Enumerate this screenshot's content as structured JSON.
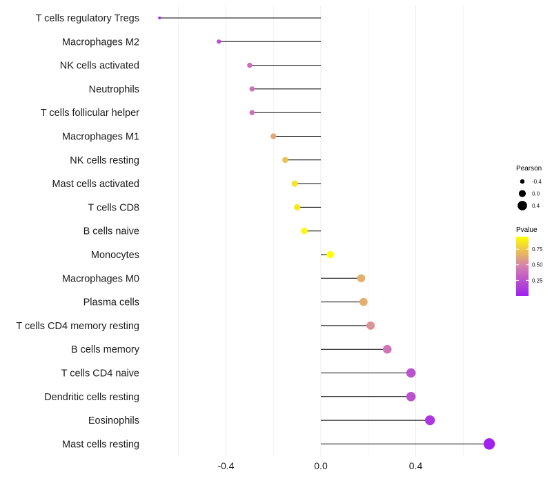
{
  "chart_data": {
    "type": "lollipop",
    "title": "",
    "xlabel": "",
    "ylabel": "",
    "xlim": [
      -0.8,
      0.75
    ],
    "xticks": [
      -0.4,
      0.0,
      0.4
    ],
    "xtick_labels": [
      "-0.4",
      "0.0",
      "0.4"
    ],
    "grid": true,
    "categories": [
      "T cells regulatory  Tregs",
      "Macrophages M2",
      "NK cells activated",
      "Neutrophils",
      "T cells follicular helper",
      "Macrophages M1",
      "NK cells resting",
      "Mast cells activated",
      "T cells CD8",
      "B cells naive",
      "Monocytes",
      "Macrophages M0",
      "Plasma cells",
      "T cells CD4 memory resting",
      "B cells memory",
      "T cells CD4 naive",
      "Dendritic cells resting",
      "Eosinophils",
      "Mast cells resting"
    ],
    "pearson": [
      -0.68,
      -0.43,
      -0.3,
      -0.29,
      -0.29,
      -0.2,
      -0.15,
      -0.11,
      -0.1,
      -0.07,
      0.04,
      0.17,
      0.18,
      0.21,
      0.28,
      0.38,
      0.38,
      0.46,
      0.71
    ],
    "pvalue": [
      0.02,
      0.22,
      0.38,
      0.4,
      0.4,
      0.62,
      0.72,
      0.85,
      0.87,
      0.92,
      0.99,
      0.66,
      0.65,
      0.55,
      0.42,
      0.25,
      0.25,
      0.12,
      0.01
    ],
    "legend": {
      "placement": "right",
      "size_title": "Pearson",
      "size_entries": [
        {
          "label": "-0.4",
          "value": -0.4
        },
        {
          "label": "0.0",
          "value": 0.0
        },
        {
          "label": "0.4",
          "value": 0.4
        }
      ],
      "color_title": "Pvalue",
      "color_ticks": [
        {
          "label": "0.75",
          "value": 0.75
        },
        {
          "label": "0.50",
          "value": 0.5
        },
        {
          "label": "0.25",
          "value": 0.25
        }
      ],
      "color_range": [
        0.0,
        0.95
      ]
    },
    "colors": {
      "low": "#a020f0",
      "mid": "#d57fae",
      "high": "#ffff00",
      "stem": "#000000",
      "grid": "#ebebeb"
    }
  }
}
